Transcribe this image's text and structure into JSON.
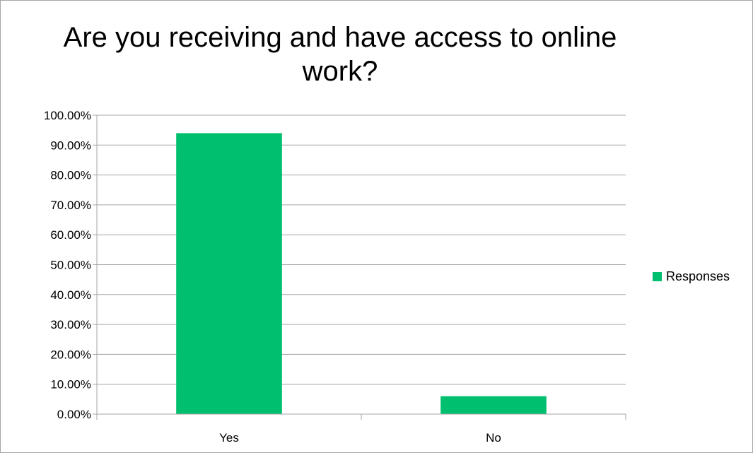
{
  "chart_data": {
    "type": "bar",
    "title": "Are you receiving and have access to online work?",
    "categories": [
      "Yes",
      "No"
    ],
    "series": [
      {
        "name": "Responses",
        "values": [
          0.94,
          0.06
        ],
        "color": "#00bf6f"
      }
    ],
    "ylim": [
      0,
      1
    ],
    "yticks": [
      0,
      0.1,
      0.2,
      0.3,
      0.4,
      0.5,
      0.6,
      0.7,
      0.8,
      0.9,
      1.0
    ],
    "ytick_labels": [
      "0.00%",
      "10.00%",
      "20.00%",
      "30.00%",
      "40.00%",
      "50.00%",
      "60.00%",
      "70.00%",
      "80.00%",
      "90.00%",
      "100.00%"
    ],
    "grid": true,
    "legend_position": "right",
    "gridline_color": "#a6a6a6"
  }
}
